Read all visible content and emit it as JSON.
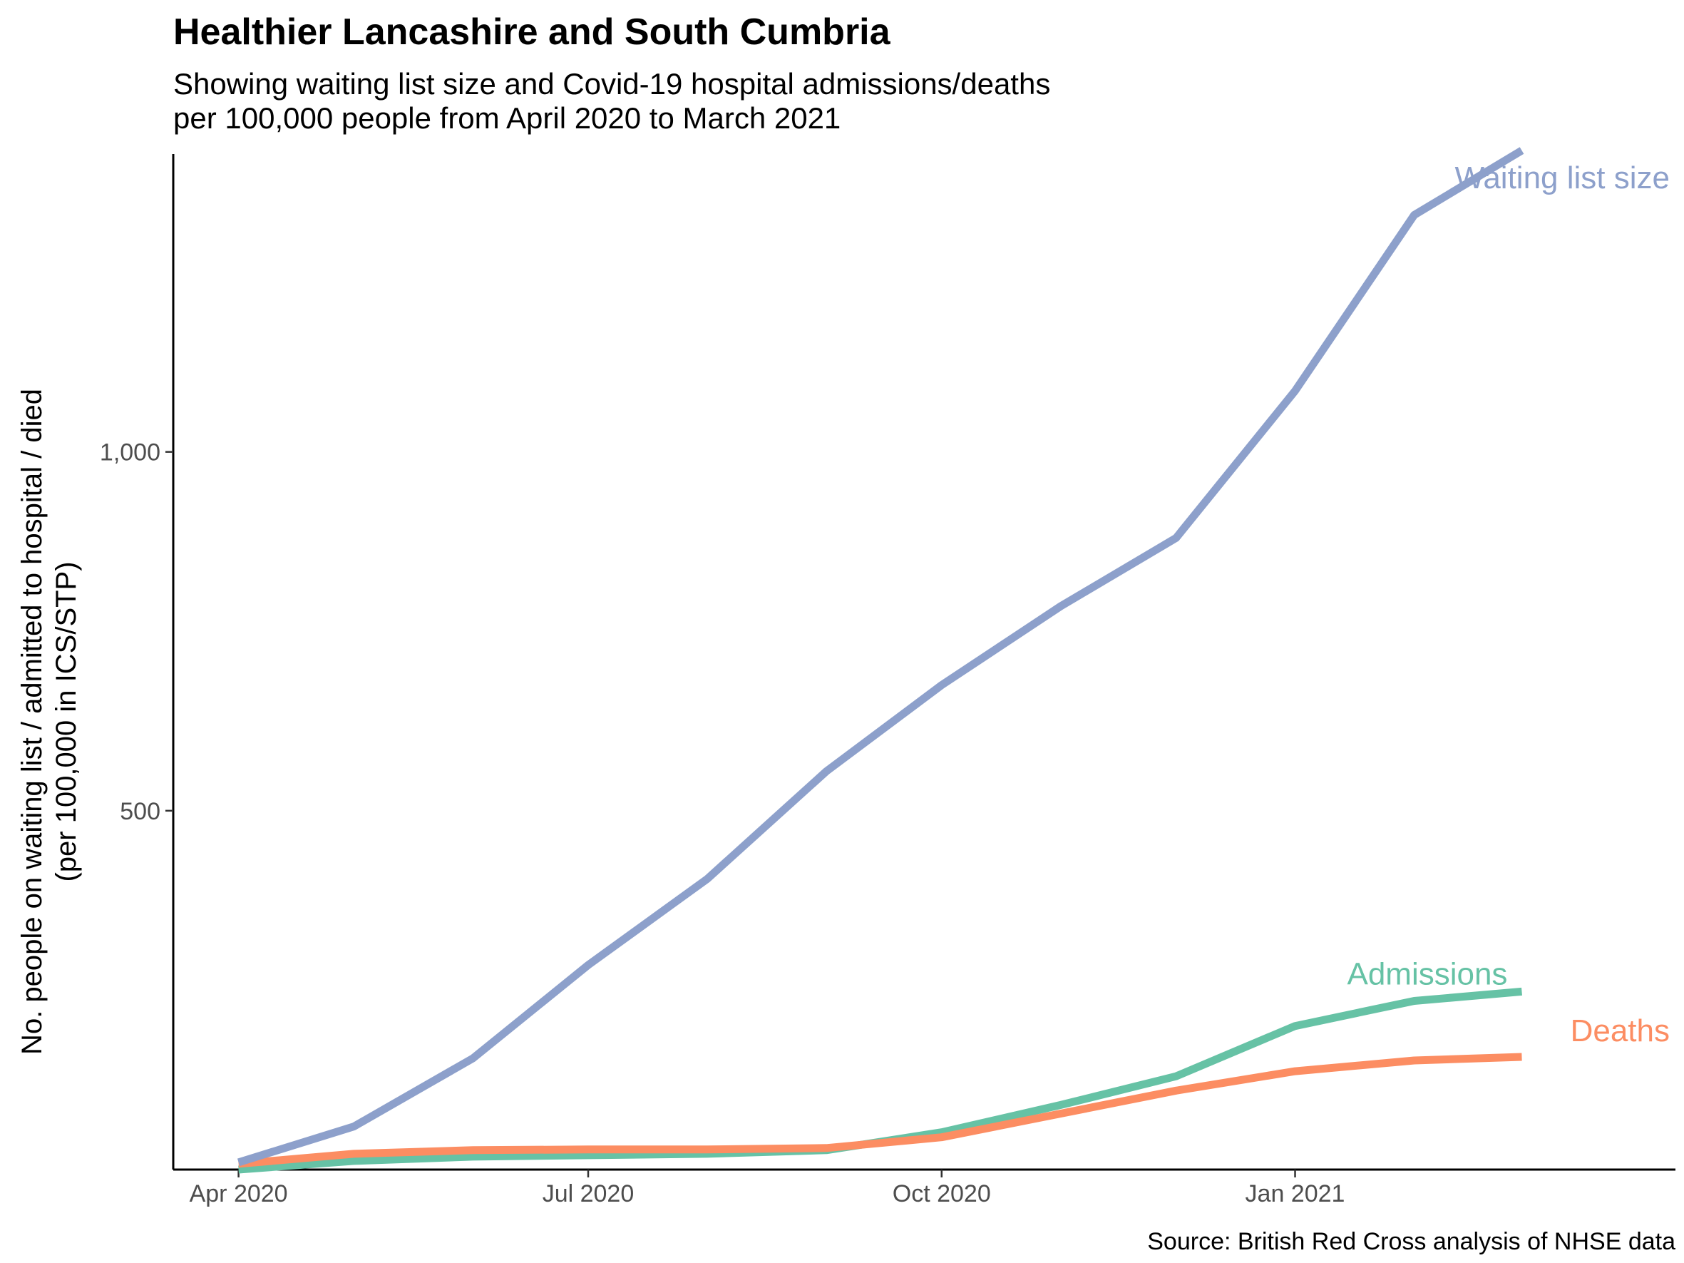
{
  "chart_data": {
    "type": "line",
    "title": "Healthier Lancashire and South Cumbria",
    "subtitle_lines": [
      "Showing waiting list size and Covid-19 hospital admissions/deaths",
      "per 100,000 people from April 2020 to March 2021"
    ],
    "ylabel_lines": [
      "No. people on waiting list / admitted to hospital / died",
      "(per 100,000 in ICS/STP)"
    ],
    "caption": "Source: British Red Cross analysis of NHSE data",
    "x_ticks": [
      {
        "date": "2020-04-01",
        "label": "Apr 2020"
      },
      {
        "date": "2020-07-01",
        "label": "Jul 2020"
      },
      {
        "date": "2020-10-01",
        "label": "Oct 2020"
      },
      {
        "date": "2021-01-01",
        "label": "Jan 2021"
      }
    ],
    "y_ticks": [
      {
        "value": 500,
        "label": "500"
      },
      {
        "value": 1000,
        "label": "1,000"
      }
    ],
    "xlim": [
      "2020-03-15",
      "2021-04-10"
    ],
    "ylim": [
      0,
      1415
    ],
    "grid": false,
    "x": [
      "2020-04-01",
      "2020-05-01",
      "2020-06-01",
      "2020-07-01",
      "2020-08-01",
      "2020-09-01",
      "2020-10-01",
      "2020-11-01",
      "2020-12-01",
      "2021-01-01",
      "2021-02-01",
      "2021-03-01"
    ],
    "series": [
      {
        "name": "Waiting list size",
        "color": "#8da0cb",
        "values": [
          10,
          60,
          155,
          285,
          405,
          555,
          675,
          785,
          880,
          1085,
          1330,
          1420
        ]
      },
      {
        "name": "Admissions",
        "color": "#66c2a5",
        "values": [
          0,
          12,
          18,
          20,
          22,
          27,
          52,
          90,
          130,
          200,
          235,
          248
        ]
      },
      {
        "name": "Deaths",
        "color": "#fc8d62",
        "values": [
          8,
          22,
          27,
          28,
          28,
          30,
          45,
          78,
          110,
          137,
          152,
          157
        ]
      }
    ]
  }
}
